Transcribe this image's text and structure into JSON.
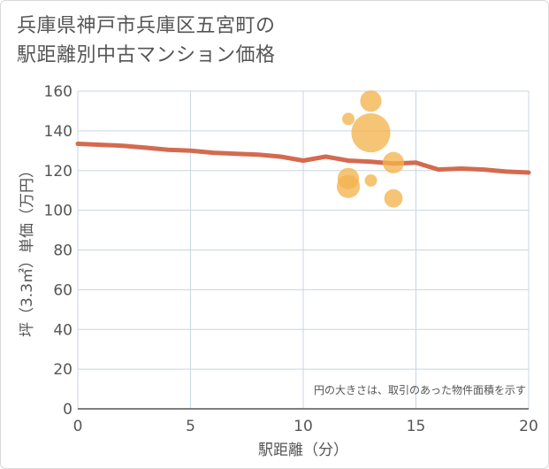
{
  "header": {
    "title_line1": "兵庫県神戸市兵庫区五宮町の",
    "title_line2": "駅距離別中古マンション価格"
  },
  "chart_data": {
    "type": "scatter",
    "title": "兵庫県神戸市兵庫区五宮町の駅距離別中古マンション価格",
    "xlabel": "駅距離（分）",
    "ylabel": "坪（3.3㎡）単価（万円）",
    "xlim": [
      0,
      20
    ],
    "ylim": [
      0,
      160
    ],
    "x_ticks": [
      0,
      5,
      10,
      15,
      20
    ],
    "y_ticks": [
      0,
      20,
      40,
      60,
      80,
      100,
      120,
      140,
      160
    ],
    "grid": true,
    "note": "円の大きさは、取引のあった物件面積を示す",
    "colors": {
      "bubble": "#f3b44e",
      "trend": "#d46a4f",
      "grid": "#c8d6e0",
      "text": "#555555"
    },
    "bubbles": [
      {
        "x": 12,
        "y": 146,
        "size": 1
      },
      {
        "x": 13,
        "y": 155,
        "size": 3
      },
      {
        "x": 13,
        "y": 139,
        "size": 10
      },
      {
        "x": 14,
        "y": 124,
        "size": 3
      },
      {
        "x": 12,
        "y": 116,
        "size": 3
      },
      {
        "x": 13,
        "y": 115,
        "size": 1
      },
      {
        "x": 12,
        "y": 112,
        "size": 3.5
      },
      {
        "x": 14,
        "y": 106,
        "size": 2.2
      }
    ],
    "trend_line": [
      {
        "x": 0,
        "y": 133.5
      },
      {
        "x": 1,
        "y": 133
      },
      {
        "x": 2,
        "y": 132.5
      },
      {
        "x": 3,
        "y": 131.5
      },
      {
        "x": 4,
        "y": 130.5
      },
      {
        "x": 5,
        "y": 130
      },
      {
        "x": 6,
        "y": 129
      },
      {
        "x": 7,
        "y": 128.5
      },
      {
        "x": 8,
        "y": 128
      },
      {
        "x": 9,
        "y": 127
      },
      {
        "x": 10,
        "y": 125
      },
      {
        "x": 11,
        "y": 127
      },
      {
        "x": 12,
        "y": 125
      },
      {
        "x": 13,
        "y": 124.5
      },
      {
        "x": 14,
        "y": 123.5
      },
      {
        "x": 15,
        "y": 124
      },
      {
        "x": 16,
        "y": 120.5
      },
      {
        "x": 17,
        "y": 121
      },
      {
        "x": 18,
        "y": 120.5
      },
      {
        "x": 19,
        "y": 119.5
      },
      {
        "x": 20,
        "y": 119
      }
    ]
  }
}
